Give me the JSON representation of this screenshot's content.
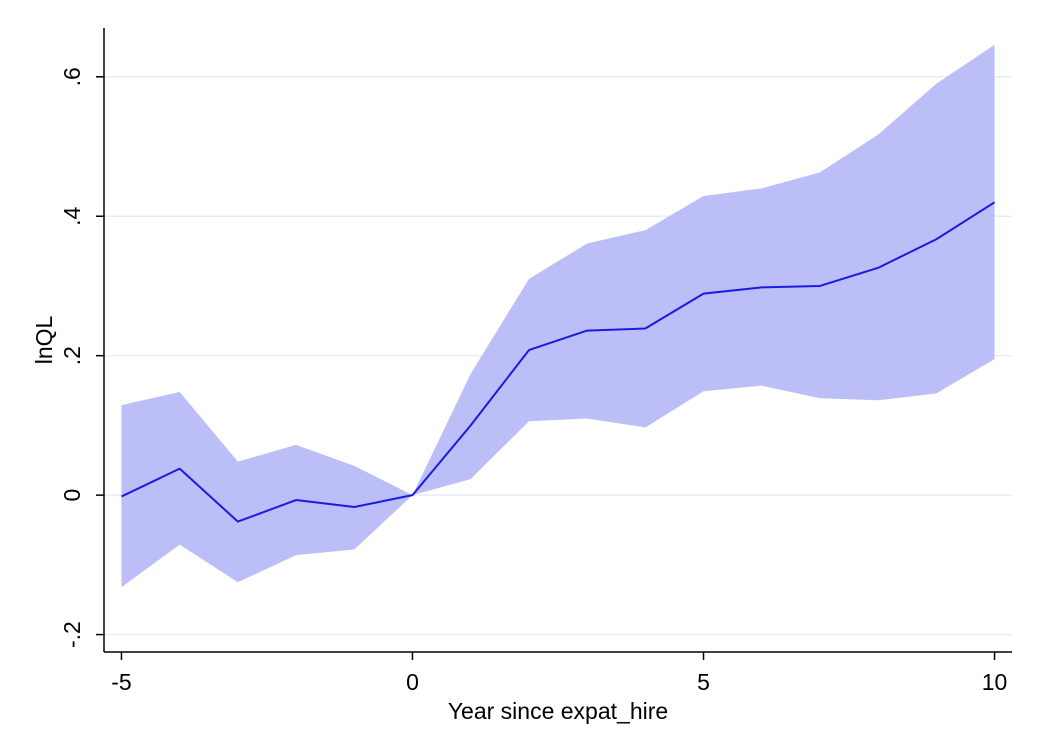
{
  "chart_data": {
    "type": "area",
    "xlabel": "Year since expat_hire",
    "ylabel": "lnQL",
    "xlim": [
      -5.3,
      10.3
    ],
    "ylim": [
      -0.225,
      0.67
    ],
    "xticks": [
      -5,
      0,
      5,
      10
    ],
    "xtick_labels": [
      "-5",
      "0",
      "5",
      "10"
    ],
    "yticks": [
      -0.2,
      0,
      0.2,
      0.4,
      0.6
    ],
    "ytick_labels": [
      "-.2",
      "0",
      ".2",
      ".4",
      ".6"
    ],
    "grid": true,
    "x": [
      -5,
      -4,
      -3,
      -2,
      -1,
      0,
      1,
      2,
      3,
      4,
      5,
      6,
      7,
      8,
      9,
      10
    ],
    "series": [
      {
        "kind": "line",
        "color": "#1a1ae0",
        "values": [
          -0.002,
          0.038,
          -0.038,
          -0.007,
          -0.017,
          0.0,
          0.1,
          0.208,
          0.236,
          0.239,
          0.289,
          0.298,
          0.3,
          0.326,
          0.367,
          0.42
        ]
      },
      {
        "kind": "band",
        "color": "#bcbff7",
        "lower": [
          -0.132,
          -0.071,
          -0.125,
          -0.086,
          -0.078,
          0.0,
          0.023,
          0.106,
          0.11,
          0.097,
          0.149,
          0.157,
          0.139,
          0.136,
          0.146,
          0.195
        ],
        "upper": [
          0.129,
          0.148,
          0.048,
          0.072,
          0.042,
          0.0,
          0.174,
          0.31,
          0.361,
          0.38,
          0.429,
          0.44,
          0.463,
          0.517,
          0.59,
          0.646
        ]
      }
    ]
  },
  "colors": {
    "background": "#ffffff",
    "grid": "#e6eef2",
    "axis": "#000000"
  }
}
